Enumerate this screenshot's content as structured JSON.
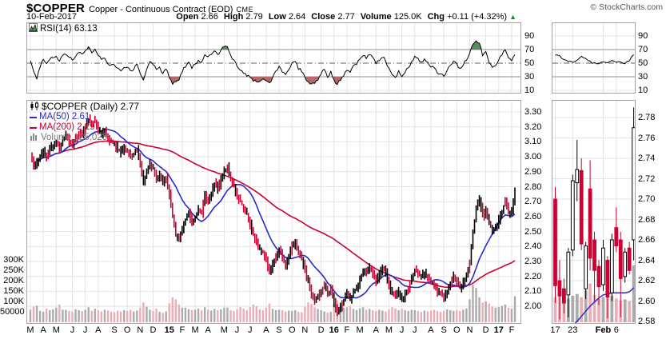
{
  "header": {
    "symbol": "$COPPER",
    "name": "Copper - Continuous Contract (EOD)",
    "exchange": "CME",
    "credit": "© StockCharts.com",
    "date": "10-Feb-2017",
    "quote": [
      {
        "label": "Open",
        "value": "2.66"
      },
      {
        "label": "High",
        "value": "2.79"
      },
      {
        "label": "Low",
        "value": "2.64"
      },
      {
        "label": "Close",
        "value": "2.77"
      },
      {
        "label": "Volume",
        "value": "125.0K"
      },
      {
        "label": "Chg",
        "value": "+0.11 (+4.32%)"
      }
    ],
    "change_direction": "up"
  },
  "legends": {
    "rsi": "RSI(14) 63.13",
    "price": "$COPPER (Daily) 2.77",
    "ma50": "MA(50) 2.61",
    "ma200": "MA(200) 2.29",
    "volume": "Volume 125,023"
  },
  "colors": {
    "up": "#000000",
    "down": "#cc0033",
    "ma50": "#2a2ac8",
    "ma200": "#cc0033",
    "vol_up": "#ababab",
    "vol_down": "#e9aeb6",
    "grid": "#e4e4e4",
    "panel_border": "#a3a3a3",
    "rsi_line": "#000000",
    "rsi_band_line": "#8f8f8f",
    "rsi_mid_line": "#606060",
    "overbought_fill": "#568f5e",
    "oversold_fill": "#b46a6a",
    "chg_up": "#009933"
  },
  "chart_data": [
    {
      "id": "rsi-main",
      "type": "line",
      "title": "RSI(14)",
      "current": 63.13,
      "ylim": [
        0,
        100
      ],
      "y_ticks": [
        90,
        70,
        50,
        30,
        10
      ],
      "overbought": 70,
      "midline": 50,
      "oversold": 30,
      "weekly_values": [
        55,
        38,
        28,
        45,
        56,
        50,
        56,
        58,
        60,
        52,
        62,
        63,
        58,
        55,
        60,
        65,
        62,
        68,
        73,
        66,
        70,
        60,
        55,
        58,
        50,
        48,
        46,
        42,
        40,
        45,
        44,
        38,
        42,
        48,
        35,
        25,
        40,
        52,
        48,
        40,
        44,
        36,
        42,
        28,
        20,
        22,
        26,
        38,
        45,
        52,
        42,
        48,
        55,
        50,
        62,
        58,
        62,
        68,
        62,
        70,
        73,
        74,
        62,
        55,
        45,
        40,
        35,
        32,
        28,
        24,
        22,
        24,
        26,
        25,
        20,
        30,
        38,
        45,
        38,
        32,
        40,
        50,
        52,
        42,
        38,
        28,
        22,
        18,
        20,
        24,
        35,
        42,
        30,
        38,
        25,
        18,
        26,
        32,
        40,
        35,
        45,
        48,
        55,
        62,
        58,
        63,
        58,
        48,
        55,
        60,
        53,
        42,
        32,
        30,
        38,
        30,
        36,
        44,
        52,
        60,
        56,
        52,
        55,
        52,
        45,
        42,
        36,
        34,
        30,
        38,
        48,
        54,
        48,
        42,
        48,
        54,
        65,
        78,
        84,
        80,
        62,
        66,
        52,
        45,
        48,
        55,
        62,
        70,
        58,
        52,
        63
      ]
    },
    {
      "id": "price-main",
      "type": "candlestick",
      "symbol": "$COPPER",
      "timeframe": "Daily",
      "current": 2.77,
      "ylim": [
        1.88,
        3.38
      ],
      "y_ticks": [
        "3.30",
        "3.20",
        "3.10",
        "3.00",
        "2.90",
        "2.80",
        "2.70",
        "2.60",
        "2.50",
        "2.40",
        "2.30",
        "2.20",
        "2.10",
        "2.00"
      ],
      "ma50_current": 2.61,
      "ma200_current": 2.29,
      "ma50_window_weeks": 10,
      "ma200_window_weeks": 43,
      "volume_y_ticks": [
        {
          "label": "300K",
          "value": 300
        },
        {
          "label": "250K",
          "value": 250
        },
        {
          "label": "200K",
          "value": 200
        },
        {
          "label": "150K",
          "value": 150
        },
        {
          "label": "100K",
          "value": 100
        },
        {
          "label": "50000",
          "value": 50
        }
      ],
      "x_ticks": [
        {
          "label": "M",
          "week": 0
        },
        {
          "label": "A",
          "week": 4
        },
        {
          "label": "M",
          "week": 8
        },
        {
          "label": "J",
          "week": 13
        },
        {
          "label": "J",
          "week": 17
        },
        {
          "label": "A",
          "week": 21
        },
        {
          "label": "S",
          "week": 26
        },
        {
          "label": "O",
          "week": 30
        },
        {
          "label": "N",
          "week": 34
        },
        {
          "label": "D",
          "week": 38
        },
        {
          "label": "15",
          "week": 43,
          "bold": true
        },
        {
          "label": "F",
          "week": 47
        },
        {
          "label": "M",
          "week": 51
        },
        {
          "label": "A",
          "week": 55
        },
        {
          "label": "M",
          "week": 60
        },
        {
          "label": "J",
          "week": 64
        },
        {
          "label": "J",
          "week": 68
        },
        {
          "label": "A",
          "week": 73
        },
        {
          "label": "S",
          "week": 77
        },
        {
          "label": "O",
          "week": 81
        },
        {
          "label": "N",
          "week": 85
        },
        {
          "label": "D",
          "week": 90
        },
        {
          "label": "16",
          "week": 94,
          "bold": true
        },
        {
          "label": "F",
          "week": 98
        },
        {
          "label": "M",
          "week": 102
        },
        {
          "label": "A",
          "week": 107
        },
        {
          "label": "M",
          "week": 111
        },
        {
          "label": "J",
          "week": 115
        },
        {
          "label": "J",
          "week": 119
        },
        {
          "label": "A",
          "week": 124
        },
        {
          "label": "S",
          "week": 128
        },
        {
          "label": "O",
          "week": 132
        },
        {
          "label": "N",
          "week": 136
        },
        {
          "label": "D",
          "week": 141
        },
        {
          "label": "17",
          "week": 145,
          "bold": true
        },
        {
          "label": "F",
          "week": 149
        }
      ],
      "weekly_closes": [
        3.02,
        2.94,
        2.96,
        3.01,
        3.04,
        3.0,
        3.05,
        3.08,
        3.1,
        3.05,
        3.12,
        3.14,
        3.1,
        3.08,
        3.12,
        3.16,
        3.14,
        3.2,
        3.25,
        3.22,
        3.24,
        3.18,
        3.15,
        3.17,
        3.12,
        3.1,
        3.08,
        3.05,
        3.03,
        3.06,
        3.04,
        3.0,
        3.02,
        3.05,
        2.96,
        2.83,
        2.9,
        2.95,
        2.92,
        2.85,
        2.88,
        2.82,
        2.86,
        2.75,
        2.6,
        2.48,
        2.45,
        2.52,
        2.58,
        2.62,
        2.55,
        2.6,
        2.65,
        2.62,
        2.74,
        2.7,
        2.76,
        2.82,
        2.78,
        2.85,
        2.9,
        2.93,
        2.86,
        2.8,
        2.74,
        2.7,
        2.66,
        2.62,
        2.55,
        2.48,
        2.42,
        2.38,
        2.36,
        2.3,
        2.22,
        2.28,
        2.32,
        2.38,
        2.32,
        2.28,
        2.34,
        2.4,
        2.42,
        2.36,
        2.32,
        2.24,
        2.16,
        2.08,
        2.04,
        2.06,
        2.1,
        2.14,
        2.08,
        2.12,
        2.02,
        1.96,
        2.0,
        2.04,
        2.08,
        2.04,
        2.1,
        2.12,
        2.18,
        2.24,
        2.22,
        2.26,
        2.22,
        2.16,
        2.22,
        2.26,
        2.22,
        2.14,
        2.08,
        2.06,
        2.1,
        2.04,
        2.08,
        2.12,
        2.18,
        2.24,
        2.22,
        2.2,
        2.22,
        2.2,
        2.16,
        2.14,
        2.1,
        2.08,
        2.06,
        2.1,
        2.16,
        2.2,
        2.16,
        2.12,
        2.16,
        2.2,
        2.3,
        2.5,
        2.65,
        2.72,
        2.6,
        2.64,
        2.56,
        2.5,
        2.52,
        2.58,
        2.64,
        2.7,
        2.62,
        2.64,
        2.77
      ],
      "weekly_volumes_k": [
        60,
        75,
        80,
        55,
        50,
        65,
        58,
        62,
        70,
        85,
        60,
        60,
        55,
        50,
        62,
        58,
        54,
        60,
        72,
        55,
        65,
        58,
        52,
        60,
        56,
        50,
        48,
        55,
        52,
        58,
        54,
        60,
        52,
        56,
        70,
        95,
        75,
        60,
        55,
        65,
        50,
        45,
        52,
        90,
        120,
        110,
        85,
        70,
        70,
        62,
        58,
        60,
        66,
        58,
        72,
        60,
        56,
        64,
        58,
        62,
        70,
        70,
        58,
        54,
        62,
        72,
        66,
        58,
        72,
        85,
        78,
        62,
        58,
        70,
        90,
        64,
        58,
        60,
        58,
        52,
        56,
        54,
        58,
        50,
        48,
        75,
        95,
        88,
        72,
        64,
        58,
        52,
        46,
        50,
        85,
        105,
        80,
        70,
        72,
        78,
        64,
        58,
        66,
        72,
        60,
        64,
        58,
        54,
        60,
        56,
        52,
        62,
        72,
        66,
        58,
        64,
        58,
        54,
        60,
        58,
        54,
        50,
        56,
        52,
        56,
        60,
        54,
        50,
        56,
        62,
        58,
        54,
        58,
        54,
        60,
        66,
        110,
        180,
        165,
        120,
        95,
        100,
        90,
        75,
        70,
        72,
        78,
        85,
        70,
        65,
        125
      ]
    },
    {
      "id": "price-mini",
      "type": "candlestick",
      "ylim": [
        2.57,
        2.79
      ],
      "y_ticks": [
        "2.78",
        "2.76",
        "2.74",
        "2.72",
        "2.70",
        "2.68",
        "2.66",
        "2.64",
        "2.62",
        "2.60",
        "2.58"
      ],
      "x_ticks": [
        {
          "label": "17",
          "i": 0
        },
        {
          "label": "23",
          "i": 4
        },
        {
          "label": "Feb",
          "i": 11,
          "bold": true
        },
        {
          "label": "6",
          "i": 14
        }
      ],
      "candles_ohlc": [
        [
          2.7,
          2.712,
          2.598,
          2.615
        ],
        [
          2.62,
          2.64,
          2.582,
          2.605
        ],
        [
          2.612,
          2.622,
          2.588,
          2.598
        ],
        [
          2.606,
          2.652,
          2.584,
          2.648
        ],
        [
          2.65,
          2.724,
          2.644,
          2.718
        ],
        [
          2.716,
          2.758,
          2.698,
          2.729
        ],
        [
          2.728,
          2.74,
          2.65,
          2.656
        ],
        [
          2.612,
          2.658,
          2.602,
          2.654
        ],
        [
          2.71,
          2.738,
          2.63,
          2.642
        ],
        [
          2.66,
          2.668,
          2.6,
          2.63
        ],
        [
          2.634,
          2.64,
          2.596,
          2.614
        ],
        [
          2.616,
          2.66,
          2.61,
          2.652
        ],
        [
          2.64,
          2.644,
          2.583,
          2.604
        ],
        [
          2.608,
          2.666,
          2.6,
          2.66
        ],
        [
          2.672,
          2.692,
          2.648,
          2.654
        ],
        [
          2.66,
          2.668,
          2.584,
          2.622
        ],
        [
          2.624,
          2.652,
          2.618,
          2.648
        ],
        [
          2.652,
          2.658,
          2.626,
          2.63
        ],
        [
          2.66,
          2.79,
          2.64,
          2.77
        ]
      ],
      "volumes_k": [
        55,
        60,
        48,
        52,
        58,
        62,
        55,
        70,
        85,
        60,
        50,
        55,
        65,
        58,
        52,
        48,
        50,
        46,
        125
      ],
      "ma50": [
        null,
        null,
        null,
        2.572,
        2.576,
        2.58,
        2.585,
        2.59,
        2.595,
        2.599,
        2.603,
        2.606,
        2.607,
        2.608,
        2.608,
        2.608,
        2.608,
        2.609,
        2.613
      ]
    },
    {
      "id": "rsi-mini",
      "type": "line",
      "y_ticks": [
        90,
        70,
        50,
        30,
        10
      ],
      "values": [
        63,
        60,
        56,
        53,
        51,
        55,
        60,
        57,
        52,
        50,
        49,
        52,
        50,
        53,
        52,
        51,
        50,
        53,
        63
      ]
    }
  ]
}
